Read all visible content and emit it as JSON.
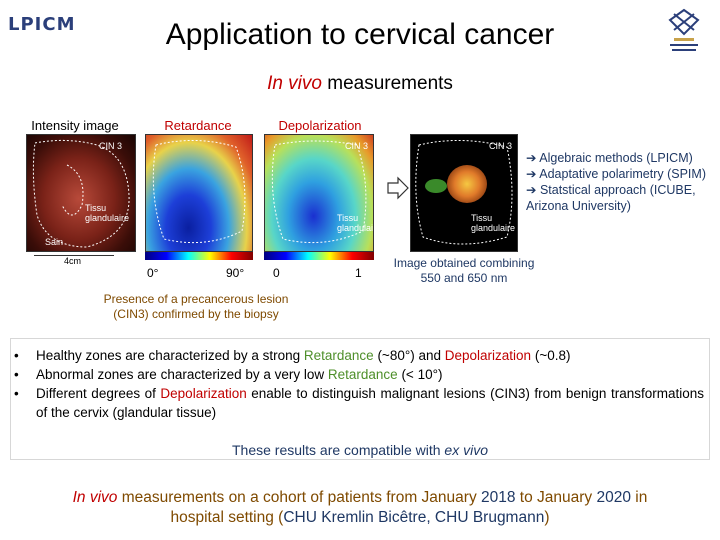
{
  "logo_left": {
    "text": "LPICM"
  },
  "title": "Application to cervical cancer",
  "subtitle": {
    "italic": "In vivo",
    "rest": " measurements"
  },
  "labels": {
    "intensity": "Intensity image",
    "retardance": "Retardance",
    "depolarization": "Depolarization",
    "cin3_a": "CIN 3",
    "cin3_b": "CIN 3",
    "cin3_c": "CIN 3",
    "tissu_a": "Tissu glandulaire",
    "tissu_b": "Tissu glandulaire",
    "tissu_c": "Tissu glandulaire",
    "sain": "Sain",
    "scale": "4cm",
    "ret_min": "0°",
    "ret_max": "90°",
    "dep_min": "0",
    "dep_max": "1"
  },
  "methods": [
    "➔ Algebraic methods (LPICM)",
    "➔ Adaptative polarimetry (SPIM)",
    "➔ Statstical approach (ICUBE, Arizona University)"
  ],
  "combined_caption": "Image obtained combining 550 and 650 nm",
  "biopsy_caption": "Presence of a precancerous lesion (CIN3) confirmed by the biopsy",
  "bullets": [
    {
      "parts": [
        "Healthy zones are characterized by a strong ",
        "Retardance",
        " (~80°) and ",
        "Depolarization",
        " (~0.8)"
      ]
    },
    {
      "parts": [
        "Abnormal zones are characterized by a very low ",
        "Retardance",
        " (< 10°)"
      ]
    },
    {
      "parts": [
        "Different degrees of ",
        "Depolarization",
        " enable to distinguish malignant lesions (CIN3) from benign transformations of the cervix (glandular tissue)"
      ]
    }
  ],
  "compat": {
    "text": "These results are compatible with ",
    "italic": "ex vivo"
  },
  "footer": {
    "line1_italic": "In vivo",
    "line1_a": " measurements on a cohort of patients from January ",
    "line1_year1": "2018",
    "line1_b": " to January ",
    "line1_year2": "2020",
    "line1_c": " in",
    "line2_a": "hospital setting (",
    "line2_b": "CHU Kremlin Bicêtre, CHU Brugmann",
    "line2_c": ")"
  },
  "colors": {
    "red": "#c00000",
    "green": "#4e8f2a",
    "navy": "#1f3864",
    "brown": "#7f4a00"
  }
}
